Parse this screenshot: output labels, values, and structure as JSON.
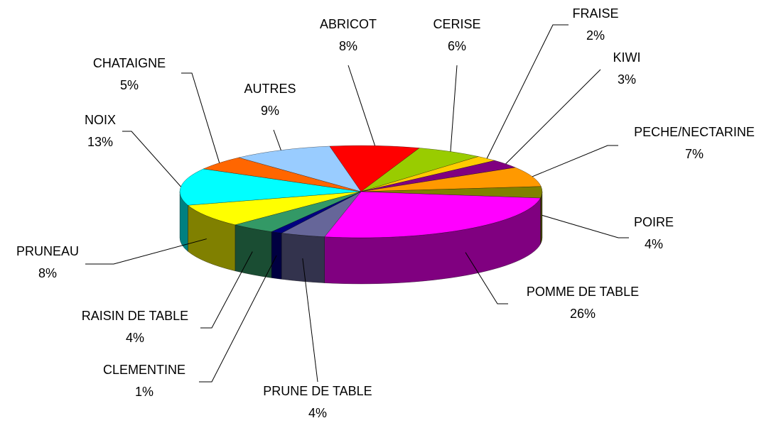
{
  "chart_data": {
    "type": "pie",
    "categories": [
      "ABRICOT",
      "CERISE",
      "FRAISE",
      "KIWI",
      "PECHE/NECTARINE",
      "POIRE",
      "POMME DE TABLE",
      "PRUNE DE TABLE",
      "CLEMENTINE",
      "RAISIN DE TABLE",
      "PRUNEAU",
      "NOIX",
      "CHATAIGNE",
      "AUTRES"
    ],
    "values": [
      8,
      6,
      2,
      3,
      7,
      4,
      26,
      4,
      1,
      4,
      8,
      13,
      5,
      9
    ],
    "value_labels": [
      "8%",
      "6%",
      "2%",
      "3%",
      "7%",
      "4%",
      "26%",
      "4%",
      "1%",
      "4%",
      "8%",
      "13%",
      "5%",
      "9%"
    ],
    "colors": [
      "#ff0000",
      "#99cc00",
      "#ffcc00",
      "#800080",
      "#ff9900",
      "#808000",
      "#ff00ff",
      "#666699",
      "#000080",
      "#339966",
      "#ffff00",
      "#00ffff",
      "#ff6600",
      "#99ccff"
    ]
  }
}
